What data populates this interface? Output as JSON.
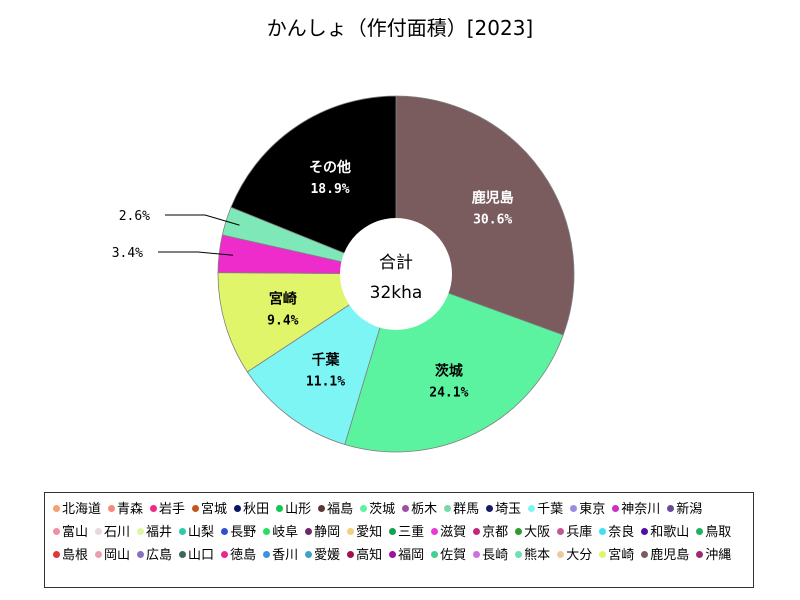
{
  "chart_data": {
    "type": "pie",
    "title": "かんしょ（作付面積）[2023]",
    "center_label": "合計",
    "center_value": "32kha",
    "slices": [
      {
        "name": "鹿児島",
        "value": 30.6,
        "label": "30.6%",
        "color": "#7a5c5f",
        "label_color": "#ffffff"
      },
      {
        "name": "茨城",
        "value": 24.1,
        "label": "24.1%",
        "color": "#5cf3a0",
        "label_color": "#000000"
      },
      {
        "name": "千葉",
        "value": 11.1,
        "label": "11.1%",
        "color": "#7ef5f5",
        "label_color": "#000000"
      },
      {
        "name": "宮崎",
        "value": 9.4,
        "label": "9.4%",
        "color": "#e0f56a",
        "label_color": "#000000"
      },
      {
        "name": "",
        "value": 3.4,
        "label": "3.4%",
        "color": "#ee2ccc",
        "label_color": "#000000"
      },
      {
        "name": "",
        "value": 2.6,
        "label": "2.6%",
        "color": "#7ee8b8",
        "label_color": "#000000"
      },
      {
        "name": "その他",
        "value": 18.9,
        "label": "18.9%",
        "color": "#000000",
        "label_color": "#ffffff"
      }
    ],
    "legend": [
      {
        "name": "北海道",
        "color": "#f5a070"
      },
      {
        "name": "青森",
        "color": "#f58a7a"
      },
      {
        "name": "岩手",
        "color": "#f0288c"
      },
      {
        "name": "宮城",
        "color": "#c0581e"
      },
      {
        "name": "秋田",
        "color": "#0a1466"
      },
      {
        "name": "山形",
        "color": "#10c850"
      },
      {
        "name": "福島",
        "color": "#5a3838"
      },
      {
        "name": "茨城",
        "color": "#5cf3a0"
      },
      {
        "name": "栃木",
        "color": "#a050a0"
      },
      {
        "name": "群馬",
        "color": "#7ad8a8"
      },
      {
        "name": "埼玉",
        "color": "#1a1a66"
      },
      {
        "name": "千葉",
        "color": "#7ef5f5"
      },
      {
        "name": "東京",
        "color": "#9a8ce0"
      },
      {
        "name": "神奈川",
        "color": "#c830c8"
      },
      {
        "name": "新潟",
        "color": "#6a4a9a"
      },
      {
        "name": "富山",
        "color": "#f090a8"
      },
      {
        "name": "石川",
        "color": "#e8d8d8"
      },
      {
        "name": "福井",
        "color": "#e0f5a0"
      },
      {
        "name": "山梨",
        "color": "#30c8a8"
      },
      {
        "name": "長野",
        "color": "#3050d0"
      },
      {
        "name": "岐阜",
        "color": "#28e060"
      },
      {
        "name": "静岡",
        "color": "#6a2a6a"
      },
      {
        "name": "愛知",
        "color": "#f0d080"
      },
      {
        "name": "三重",
        "color": "#10a050"
      },
      {
        "name": "滋賀",
        "color": "#e838d8"
      },
      {
        "name": "京都",
        "color": "#c02880"
      },
      {
        "name": "大阪",
        "color": "#309a30"
      },
      {
        "name": "兵庫",
        "color": "#c05a90"
      },
      {
        "name": "奈良",
        "color": "#40e0f0"
      },
      {
        "name": "和歌山",
        "color": "#5010a0"
      },
      {
        "name": "鳥取",
        "color": "#20b060"
      },
      {
        "name": "島根",
        "color": "#e03838"
      },
      {
        "name": "岡山",
        "color": "#e8a0b0"
      },
      {
        "name": "広島",
        "color": "#8a70c0"
      },
      {
        "name": "山口",
        "color": "#3a6a5a"
      },
      {
        "name": "徳島",
        "color": "#e82890"
      },
      {
        "name": "香川",
        "color": "#4090e0"
      },
      {
        "name": "愛媛",
        "color": "#40a0c8"
      },
      {
        "name": "高知",
        "color": "#a01050"
      },
      {
        "name": "福岡",
        "color": "#a010a0"
      },
      {
        "name": "佐賀",
        "color": "#40d090"
      },
      {
        "name": "長崎",
        "color": "#d070e0"
      },
      {
        "name": "熊本",
        "color": "#70e0b0"
      },
      {
        "name": "大分",
        "color": "#f0c8a0"
      },
      {
        "name": "宮崎",
        "color": "#e0f56a"
      },
      {
        "name": "鹿児島",
        "color": "#7a5c5f"
      },
      {
        "name": "沖縄",
        "color": "#a02870"
      }
    ]
  }
}
